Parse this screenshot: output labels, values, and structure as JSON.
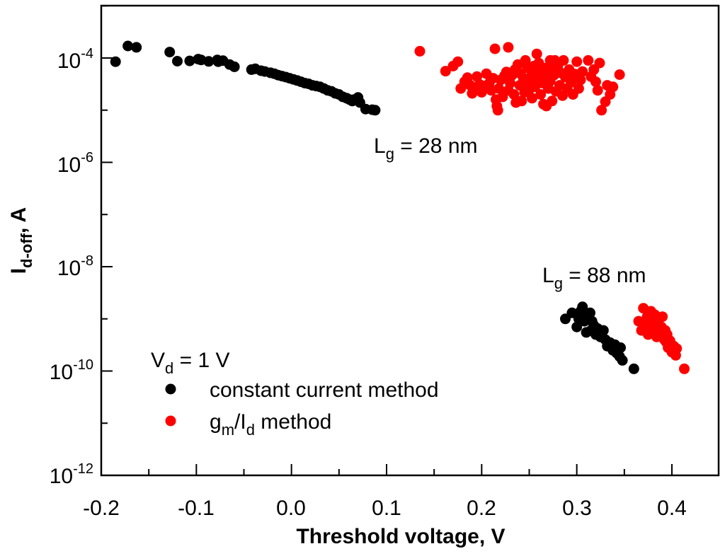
{
  "chart_data": {
    "type": "scatter",
    "xlabel": "Threshold voltage, V",
    "ylabel": {
      "main": "I",
      "sub": "d-off",
      "suffix": ", A"
    },
    "xlim": [
      -0.2,
      0.45
    ],
    "ylim_log10": [
      -12,
      -3
    ],
    "yscale": "log",
    "x_ticks": [
      -0.2,
      -0.1,
      0.0,
      0.1,
      0.2,
      0.3,
      0.4
    ],
    "x_tick_labels": [
      "-0.2",
      "-0.1",
      "0.0",
      "0.1",
      "0.2",
      "0.3",
      "0.4"
    ],
    "y_ticks_log10": [
      -4,
      -6,
      -8,
      -10,
      -12
    ],
    "y_tick_labels": [
      {
        "base": "10",
        "exp": "-4"
      },
      {
        "base": "10",
        "exp": "-6"
      },
      {
        "base": "10",
        "exp": "-8"
      },
      {
        "base": "10",
        "exp": "-10"
      },
      {
        "base": "10",
        "exp": "-12"
      }
    ],
    "annotations": {
      "lg28": {
        "main": "L",
        "sub": "g",
        "rest": " = 28 nm"
      },
      "lg88": {
        "main": "L",
        "sub": "g",
        "rest": " = 88 nm"
      },
      "vd": {
        "main": "V",
        "sub": "d",
        "rest": " = 1 V"
      }
    },
    "legend": {
      "position": "bottom-left",
      "entries": [
        {
          "label": "constant current method",
          "color": "#000000"
        },
        {
          "g": "g",
          "m": "m",
          "slash": "/I",
          "d": "d",
          "rest": " method",
          "color": "#ff0000"
        }
      ]
    },
    "series": [
      {
        "name": "constant current method",
        "color": "#000000",
        "points": [
          [
            -0.185,
            8.5e-05
          ],
          [
            -0.172,
            0.00017
          ],
          [
            -0.163,
            0.00016
          ],
          [
            -0.128,
            0.00013
          ],
          [
            -0.12,
            8.7e-05
          ],
          [
            -0.107,
            8.8e-05
          ],
          [
            -0.098,
            9.5e-05
          ],
          [
            -0.095,
            9.2e-05
          ],
          [
            -0.087,
            8.6e-05
          ],
          [
            -0.078,
            9.2e-05
          ],
          [
            -0.077,
            8.5e-05
          ],
          [
            -0.072,
            8.9e-05
          ],
          [
            -0.065,
            7.5e-05
          ],
          [
            -0.06,
            6.8e-05
          ],
          [
            -0.042,
            6e-05
          ],
          [
            -0.038,
            6.2e-05
          ],
          [
            -0.032,
            5.7e-05
          ],
          [
            -0.028,
            5.5e-05
          ],
          [
            -0.022,
            5.2e-05
          ],
          [
            -0.018,
            5e-05
          ],
          [
            -0.014,
            4.7e-05
          ],
          [
            -0.01,
            4.5e-05
          ],
          [
            -0.006,
            4.3e-05
          ],
          [
            -0.002,
            4.1e-05
          ],
          [
            0.002,
            3.9e-05
          ],
          [
            0.006,
            3.7e-05
          ],
          [
            0.01,
            3.5e-05
          ],
          [
            0.014,
            3.3e-05
          ],
          [
            0.018,
            3.2e-05
          ],
          [
            0.022,
            3e-05
          ],
          [
            0.026,
            2.9e-05
          ],
          [
            0.03,
            2.8e-05
          ],
          [
            0.034,
            2.6e-05
          ],
          [
            0.038,
            2.4e-05
          ],
          [
            0.042,
            2.3e-05
          ],
          [
            0.046,
            2.1e-05
          ],
          [
            0.05,
            2e-05
          ],
          [
            0.054,
            1.8e-05
          ],
          [
            0.058,
            1.7e-05
          ],
          [
            0.061,
            1.6e-05
          ],
          [
            0.064,
            1.5e-05
          ],
          [
            0.066,
            1.6e-05
          ],
          [
            0.07,
            1.75e-05
          ],
          [
            0.072,
            1.4e-05
          ],
          [
            0.078,
            1.05e-05
          ],
          [
            0.085,
            1.02e-05
          ],
          [
            0.088,
            1e-05
          ],
          [
            0.288,
            1e-09
          ],
          [
            0.295,
            1.3e-09
          ],
          [
            0.3,
            7e-10
          ],
          [
            0.302,
            1e-09
          ],
          [
            0.304,
            1.4e-09
          ],
          [
            0.306,
            1.7e-09
          ],
          [
            0.308,
            9e-10
          ],
          [
            0.31,
            5.5e-10
          ],
          [
            0.312,
            1.1e-09
          ],
          [
            0.314,
            1.3e-09
          ],
          [
            0.315,
            6e-10
          ],
          [
            0.316,
            9e-10
          ],
          [
            0.318,
            7.5e-10
          ],
          [
            0.32,
            5e-10
          ],
          [
            0.322,
            6.5e-10
          ],
          [
            0.325,
            4.5e-10
          ],
          [
            0.328,
            6e-10
          ],
          [
            0.33,
            4e-10
          ],
          [
            0.332,
            3e-10
          ],
          [
            0.335,
            3.5e-10
          ],
          [
            0.338,
            2.5e-10
          ],
          [
            0.34,
            3.2e-10
          ],
          [
            0.342,
            2.2e-10
          ],
          [
            0.345,
            1.9e-10
          ],
          [
            0.346,
            2.8e-10
          ],
          [
            0.348,
            1.6e-10
          ],
          [
            0.36,
            1.1e-10
          ]
        ]
      },
      {
        "name": "gm/Id method",
        "color": "#ff0000",
        "points": [
          [
            0.135,
            0.000135
          ],
          [
            0.162,
            5.6e-05
          ],
          [
            0.17,
            7e-05
          ],
          [
            0.175,
            8.5e-05
          ],
          [
            0.178,
            2.6e-05
          ],
          [
            0.182,
            3.5e-05
          ],
          [
            0.185,
            4.2e-05
          ],
          [
            0.188,
            3e-05
          ],
          [
            0.19,
            2.1e-05
          ],
          [
            0.192,
            2.7e-05
          ],
          [
            0.195,
            4.4e-05
          ],
          [
            0.198,
            3.1e-05
          ],
          [
            0.2,
            2.2e-05
          ],
          [
            0.202,
            2.9e-05
          ],
          [
            0.205,
            5e-05
          ],
          [
            0.208,
            3.3e-05
          ],
          [
            0.21,
            2.4e-05
          ],
          [
            0.212,
            4.1e-05
          ],
          [
            0.214,
            0.00015
          ],
          [
            0.215,
            1.6e-05
          ],
          [
            0.216,
            1.2e-05
          ],
          [
            0.217,
            1e-05
          ],
          [
            0.218,
            2.6e-05
          ],
          [
            0.22,
            3.8e-05
          ],
          [
            0.222,
            1.8e-05
          ],
          [
            0.224,
            4.6e-05
          ],
          [
            0.226,
            5.4e-05
          ],
          [
            0.228,
            0.00016
          ],
          [
            0.228,
            2.4e-05
          ],
          [
            0.23,
            3.3e-05
          ],
          [
            0.232,
            4.7e-05
          ],
          [
            0.234,
            2e-05
          ],
          [
            0.235,
            6e-05
          ],
          [
            0.236,
            1.4e-05
          ],
          [
            0.238,
            7.5e-05
          ],
          [
            0.24,
            3e-05
          ],
          [
            0.241,
            5e-05
          ],
          [
            0.242,
            1.5e-05
          ],
          [
            0.244,
            4e-05
          ],
          [
            0.245,
            2.2e-05
          ],
          [
            0.246,
            9e-05
          ],
          [
            0.248,
            6.5e-05
          ],
          [
            0.249,
            3.5e-05
          ],
          [
            0.25,
            2.5e-05
          ],
          [
            0.252,
            4.5e-05
          ],
          [
            0.253,
            1.7e-05
          ],
          [
            0.254,
            5.5e-05
          ],
          [
            0.255,
            7e-05
          ],
          [
            0.256,
            2.8e-05
          ],
          [
            0.258,
            0.00012
          ],
          [
            0.258,
            3.8e-05
          ],
          [
            0.26,
            8e-05
          ],
          [
            0.26,
            4.6e-05
          ],
          [
            0.262,
            2e-05
          ],
          [
            0.263,
            5.8e-05
          ],
          [
            0.264,
            3.3e-05
          ],
          [
            0.265,
            1.3e-05
          ],
          [
            0.266,
            6.4e-05
          ],
          [
            0.267,
            4.2e-05
          ],
          [
            0.268,
            1.2e-05
          ],
          [
            0.269,
            5.2e-05
          ],
          [
            0.27,
            2.6e-05
          ],
          [
            0.272,
            9e-05
          ],
          [
            0.272,
            3.6e-05
          ],
          [
            0.274,
            1.5e-05
          ],
          [
            0.275,
            6.2e-05
          ],
          [
            0.276,
            4.7e-05
          ],
          [
            0.277,
            9e-05
          ],
          [
            0.278,
            2.3e-05
          ],
          [
            0.28,
            7e-05
          ],
          [
            0.282,
            3e-05
          ],
          [
            0.283,
            5.2e-05
          ],
          [
            0.285,
            1.9e-05
          ],
          [
            0.286,
            9e-05
          ],
          [
            0.288,
            4.3e-05
          ],
          [
            0.29,
            2.6e-05
          ],
          [
            0.292,
            6e-05
          ],
          [
            0.294,
            3.4e-05
          ],
          [
            0.296,
            2e-05
          ],
          [
            0.298,
            4.9e-05
          ],
          [
            0.3,
            8.5e-05
          ],
          [
            0.302,
            2.6e-05
          ],
          [
            0.304,
            3.8e-05
          ],
          [
            0.306,
            5.5e-05
          ],
          [
            0.312,
            9e-05
          ],
          [
            0.315,
            4.4e-05
          ],
          [
            0.318,
            6e-05
          ],
          [
            0.32,
            3.5e-05
          ],
          [
            0.322,
            2.4e-05
          ],
          [
            0.324,
            8e-05
          ],
          [
            0.326,
            1e-05
          ],
          [
            0.33,
            1.45e-05
          ],
          [
            0.332,
            3e-05
          ],
          [
            0.335,
            2e-05
          ],
          [
            0.338,
            2.8e-05
          ],
          [
            0.345,
            4.8e-05
          ],
          [
            0.365,
            9e-10
          ],
          [
            0.368,
            6e-10
          ],
          [
            0.37,
            1.6e-09
          ],
          [
            0.372,
            8e-10
          ],
          [
            0.374,
            1.1e-09
          ],
          [
            0.375,
            5e-10
          ],
          [
            0.376,
            7e-10
          ],
          [
            0.378,
            1.4e-09
          ],
          [
            0.38,
            9e-10
          ],
          [
            0.381,
            6.5e-10
          ],
          [
            0.382,
            1.2e-09
          ],
          [
            0.384,
            4.5e-10
          ],
          [
            0.385,
            8e-10
          ],
          [
            0.386,
            1e-09
          ],
          [
            0.388,
            5.5e-10
          ],
          [
            0.389,
            7e-10
          ],
          [
            0.39,
            1.1e-09
          ],
          [
            0.392,
            4e-10
          ],
          [
            0.393,
            6e-10
          ],
          [
            0.394,
            3.6e-10
          ],
          [
            0.395,
            5e-10
          ],
          [
            0.396,
            2.8e-10
          ],
          [
            0.398,
            3.8e-10
          ],
          [
            0.4,
            2.3e-10
          ],
          [
            0.402,
            3e-10
          ],
          [
            0.404,
            2e-10
          ],
          [
            0.405,
            2.7e-10
          ],
          [
            0.413,
            1.1e-10
          ]
        ]
      }
    ]
  }
}
